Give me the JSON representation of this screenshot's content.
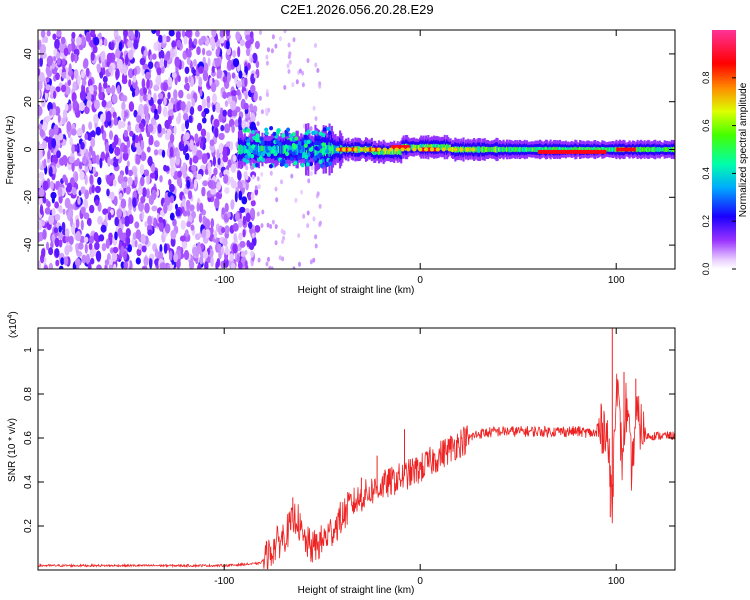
{
  "page": {
    "title": "C2E1.2026.056.20.28.E29"
  },
  "chart_data": [
    {
      "type": "heatmap",
      "title": "C2E1.2026.056.20.28.E29",
      "xlabel": "Height of straight line (km)",
      "ylabel": "Frequency (Hz)",
      "xlim": [
        -195,
        130
      ],
      "ylim": [
        -50,
        50
      ],
      "xticks": [
        -100,
        0,
        100
      ],
      "yticks": [
        -40,
        -20,
        0,
        20,
        40
      ],
      "colorbar": {
        "label": "Normalized spectral amplitude",
        "range": [
          0,
          1
        ],
        "ticks": [
          0.0,
          0.2,
          0.4,
          0.6,
          0.8
        ],
        "colors": [
          "#ffffff",
          "#cc99ff",
          "#6600ff",
          "#0000ff",
          "#00ccff",
          "#00ff99",
          "#66ff00",
          "#ffff00",
          "#ff6600",
          "#ff0000",
          "#ff33aa"
        ]
      },
      "description_regions": [
        {
          "x_range": [
            -195,
            -83
          ],
          "content": "broadband noise",
          "amplitude": [
            0.05,
            0.25
          ]
        },
        {
          "x_range": [
            -93,
            130
          ],
          "content": "narrow carrier near 0 Hz",
          "center_hz": 0,
          "amplitude": [
            0.3,
            1.0
          ]
        }
      ]
    },
    {
      "type": "line",
      "title": "",
      "xlabel": "Height of straight line (km)",
      "ylabel": "SNR (10 * v/v)",
      "multiplier": "(x10",
      "multiplier_exp": "4",
      "multiplier_close": ")",
      "xlim": [
        -195,
        130
      ],
      "ylim": [
        0,
        1.1
      ],
      "xticks": [
        -100,
        0,
        100
      ],
      "yticks": [
        0.2,
        0.4,
        0.6,
        0.8,
        1
      ],
      "series": [
        {
          "name": "SNR",
          "color": "#ee2222",
          "x": [
            -195,
            -150,
            -100,
            -82,
            -78,
            -75,
            -70,
            -66,
            -63,
            -60,
            -55,
            -50,
            -45,
            -40,
            -35,
            -30,
            -25,
            -20,
            -15,
            -10,
            -5,
            0,
            5,
            10,
            15,
            20,
            25,
            30,
            40,
            50,
            60,
            70,
            80,
            90,
            95,
            98,
            100,
            103,
            105,
            108,
            110,
            115,
            120,
            130
          ],
          "values": [
            0.02,
            0.02,
            0.02,
            0.03,
            0.06,
            0.1,
            0.15,
            0.2,
            0.25,
            0.14,
            0.1,
            0.13,
            0.18,
            0.24,
            0.3,
            0.33,
            0.36,
            0.38,
            0.4,
            0.42,
            0.44,
            0.46,
            0.49,
            0.52,
            0.55,
            0.58,
            0.6,
            0.62,
            0.63,
            0.63,
            0.63,
            0.63,
            0.63,
            0.62,
            0.66,
            0.3,
            0.9,
            0.5,
            0.75,
            0.45,
            0.7,
            0.61,
            0.61,
            0.61
          ],
          "peaks": [
            {
              "x": -65,
              "y": 0.33
            },
            {
              "x": -30,
              "y": 0.42
            },
            {
              "x": -22,
              "y": 0.52
            },
            {
              "x": -8,
              "y": 0.64
            },
            {
              "x": 98,
              "y": 1.1
            },
            {
              "x": 97,
              "y": 0.24
            },
            {
              "x": 104,
              "y": 0.9
            },
            {
              "x": 110,
              "y": 0.87
            }
          ]
        }
      ]
    }
  ]
}
